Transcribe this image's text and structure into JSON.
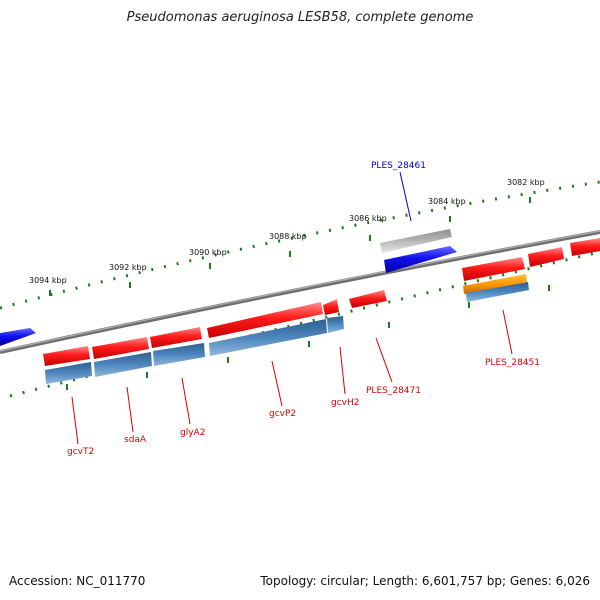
{
  "title": "Pseudomonas aeruginosa LESB58, complete genome",
  "footer": {
    "accession": "Accession: NC_011770",
    "topology": "Topology: circular; Length: 6,601,757 bp; Genes: 6,026"
  },
  "colors": {
    "forward_cds": "#ff1111",
    "reverse_blue": "#1111ee",
    "gene_steel": "#4a7fb0",
    "gray_feature": "#b5b5b5",
    "orange_feature": "#ff9900",
    "ticks": "#1f7a1f",
    "backbone": "#7a7a7a",
    "label_red": "#dd0000",
    "label_blue": "#0000cc"
  },
  "scale_labels": [
    "3094 kbp",
    "3092 kbp",
    "3090 kbp",
    "3088 kbp",
    "3086 kbp",
    "3084 kbp",
    "3082 kbp"
  ],
  "gene_labels": [
    {
      "text": "gcvT2",
      "color": "red"
    },
    {
      "text": "sdaA",
      "color": "red"
    },
    {
      "text": "glyA2",
      "color": "red"
    },
    {
      "text": "gcvP2",
      "color": "red"
    },
    {
      "text": "gcvH2",
      "color": "red"
    },
    {
      "text": "PLES_28471",
      "color": "red"
    },
    {
      "text": "PLES_28451",
      "color": "red"
    },
    {
      "text": "PLES_28461",
      "color": "blue"
    }
  ]
}
